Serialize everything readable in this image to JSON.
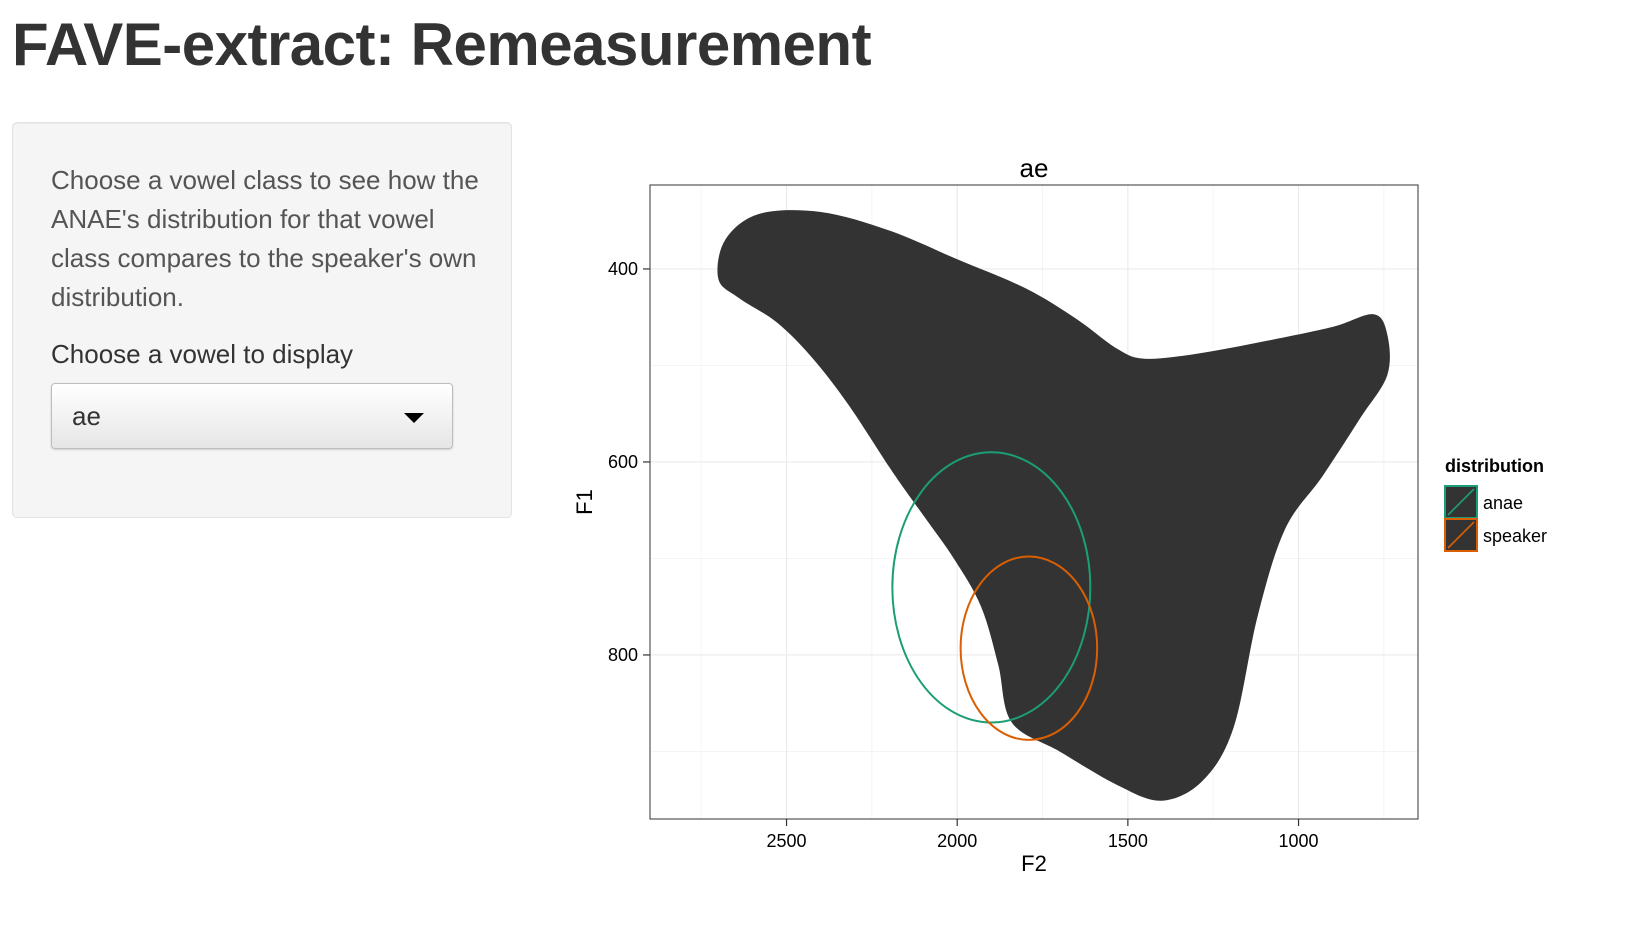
{
  "page": {
    "title": "FAVE-extract: Remeasurement"
  },
  "sidebar": {
    "help_text": "Choose a vowel class to see how the ANAE's distribution for that vowel class compares to the speaker's own distribution.",
    "select_label": "Choose a vowel to display",
    "select_value": "ae"
  },
  "chart_data": {
    "type": "scatter",
    "title": "ae",
    "xlabel": "F2",
    "ylabel": "F1",
    "x_reversed": true,
    "y_reversed": true,
    "xlim": [
      2900,
      650
    ],
    "ylim": [
      313,
      970
    ],
    "x_ticks": [
      2500,
      2000,
      1500,
      1000
    ],
    "y_ticks": [
      400,
      600,
      800
    ],
    "x_tick_labels": [
      "2500",
      "2000",
      "1500",
      "1000"
    ],
    "y_tick_labels": [
      "400",
      "600",
      "800"
    ],
    "grid": true,
    "legend": {
      "title": "distribution",
      "placement": "right",
      "entries": [
        {
          "name": "anae",
          "color": "#1b9e77"
        },
        {
          "name": "speaker",
          "color": "#d95f02"
        }
      ]
    },
    "density_fill_color": "#333333",
    "density_region": [
      [
        2700,
        410
      ],
      [
        2680,
        370
      ],
      [
        2580,
        343
      ],
      [
        2400,
        341
      ],
      [
        2200,
        360
      ],
      [
        2000,
        390
      ],
      [
        1800,
        420
      ],
      [
        1650,
        452
      ],
      [
        1530,
        483
      ],
      [
        1450,
        493
      ],
      [
        1300,
        488
      ],
      [
        1100,
        475
      ],
      [
        900,
        460
      ],
      [
        780,
        447
      ],
      [
        740,
        468
      ],
      [
        740,
        510
      ],
      [
        820,
        555
      ],
      [
        930,
        615
      ],
      [
        1040,
        670
      ],
      [
        1120,
        760
      ],
      [
        1190,
        875
      ],
      [
        1280,
        930
      ],
      [
        1400,
        951
      ],
      [
        1530,
        935
      ],
      [
        1700,
        900
      ],
      [
        1840,
        870
      ],
      [
        1880,
        810
      ],
      [
        1930,
        750
      ],
      [
        2010,
        700
      ],
      [
        2100,
        655
      ],
      [
        2190,
        610
      ],
      [
        2320,
        540
      ],
      [
        2430,
        490
      ],
      [
        2530,
        455
      ],
      [
        2640,
        430
      ]
    ],
    "series": [
      {
        "name": "anae",
        "color": "#1b9e77",
        "shape": "ellipse",
        "center": [
          1900,
          730
        ],
        "radius_f2": 290,
        "radius_f1": 140
      },
      {
        "name": "speaker",
        "color": "#d95f02",
        "shape": "ellipse",
        "center": [
          1790,
          793
        ],
        "radius_f2": 200,
        "radius_f1": 95
      }
    ]
  }
}
